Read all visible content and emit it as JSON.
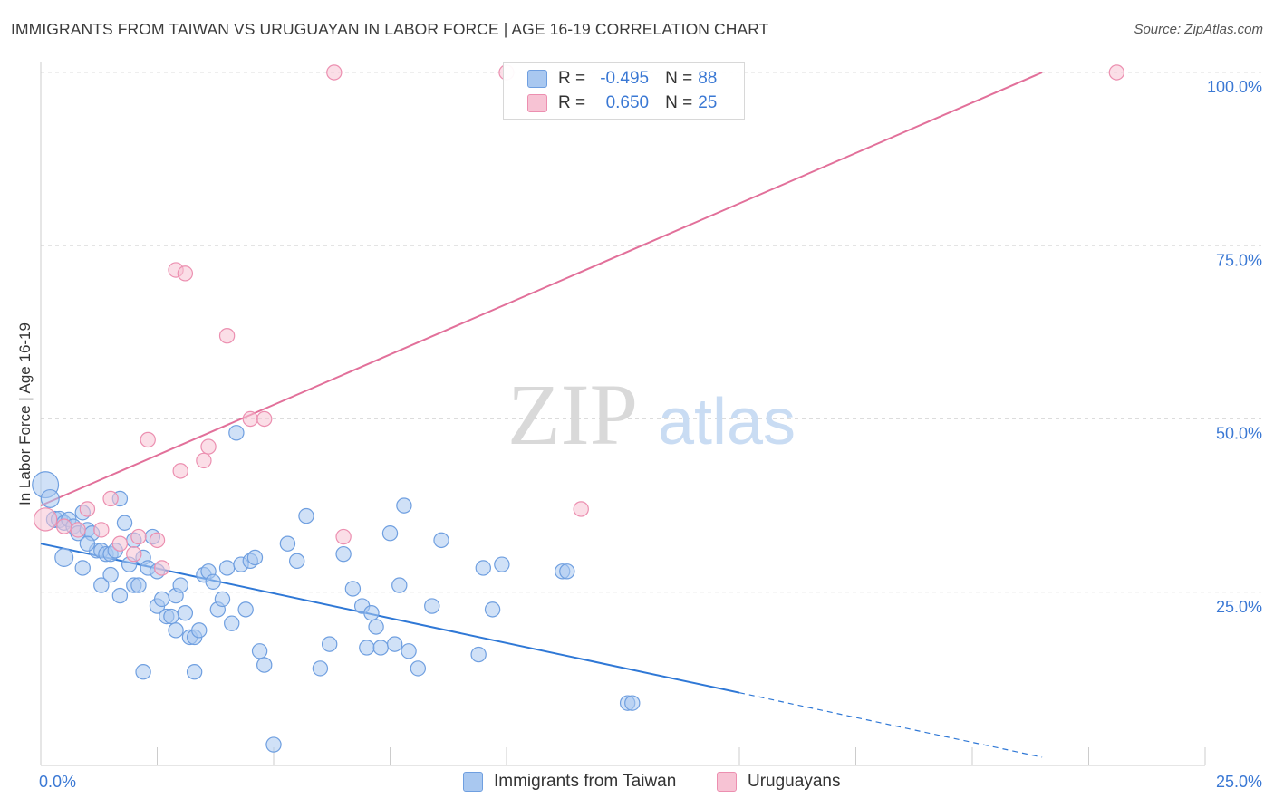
{
  "title": "IMMIGRANTS FROM TAIWAN VS URUGUAYAN IN LABOR FORCE | AGE 16-19 CORRELATION CHART",
  "source": "Source: ZipAtlas.com",
  "watermark": {
    "part1": "ZIP",
    "part2": "atlas"
  },
  "legend": {
    "series1": {
      "r_label": "R =",
      "r_value": "-0.495",
      "n_label": "N =",
      "n_value": "88"
    },
    "series2": {
      "r_label": "R =",
      "r_value": "0.650",
      "n_label": "N =",
      "n_value": "25"
    }
  },
  "colors": {
    "blue_fill": "#a9c8f0",
    "blue_stroke": "#6f9fe0",
    "blue_line": "#2f78d6",
    "pink_fill": "#f7c3d4",
    "pink_stroke": "#ec8fb0",
    "pink_line": "#e2709a",
    "axis_label": "#3a78d4",
    "grid": "#dcdcdc"
  },
  "chart_data": {
    "type": "scatter",
    "title": "IMMIGRANTS FROM TAIWAN VS URUGUAYAN IN LABOR FORCE | AGE 16-19 CORRELATION CHART",
    "xlabel": "",
    "ylabel": "In Labor Force | Age 16-19",
    "xlim": [
      0,
      25
    ],
    "ylim": [
      0,
      100
    ],
    "x_tick_labels": [
      "0.0%",
      "25.0%"
    ],
    "y_ticks": [
      25,
      50,
      75,
      100
    ],
    "y_tick_labels": [
      "25.0%",
      "50.0%",
      "75.0%",
      "100.0%"
    ],
    "series": [
      {
        "name": "Immigrants from Taiwan",
        "color": "blue",
        "r": -0.495,
        "n": 88,
        "trend": {
          "x0": 0,
          "y0": 32,
          "x1": 15,
          "y1": 10.5,
          "dash_to_x": 21.5
        },
        "points": [
          [
            0.1,
            40.5,
            16
          ],
          [
            0.2,
            38.5,
            11
          ],
          [
            0.3,
            35.5,
            10
          ],
          [
            0.4,
            35.5,
            10
          ],
          [
            0.5,
            35,
            9
          ],
          [
            0.6,
            35.5,
            9
          ],
          [
            0.7,
            34.5,
            9
          ],
          [
            0.8,
            33.5,
            9
          ],
          [
            0.9,
            36.5,
            9
          ],
          [
            1.0,
            34,
            9
          ],
          [
            1.1,
            33.5,
            9
          ],
          [
            1.2,
            31,
            9
          ],
          [
            1.3,
            31,
            9
          ],
          [
            1.4,
            30.5,
            9
          ],
          [
            1.5,
            30.5,
            9
          ],
          [
            1.7,
            38.5,
            9
          ],
          [
            1.8,
            35,
            9
          ],
          [
            1.9,
            29,
            9
          ],
          [
            2.0,
            26,
            9
          ],
          [
            2.1,
            26,
            9
          ],
          [
            2.2,
            30,
            9
          ],
          [
            2.3,
            28.5,
            9
          ],
          [
            2.4,
            33,
            9
          ],
          [
            2.5,
            23,
            9
          ],
          [
            2.6,
            24,
            9
          ],
          [
            2.7,
            21.5,
            9
          ],
          [
            2.8,
            21.5,
            9
          ],
          [
            2.9,
            24.5,
            9
          ],
          [
            3.1,
            22,
            9
          ],
          [
            3.2,
            18.5,
            9
          ],
          [
            3.3,
            18.5,
            9
          ],
          [
            3.4,
            19.5,
            9
          ],
          [
            3.5,
            27.5,
            9
          ],
          [
            3.6,
            28,
            9
          ],
          [
            3.7,
            26.5,
            9
          ],
          [
            3.8,
            22.5,
            9
          ],
          [
            3.9,
            24,
            9
          ],
          [
            4.0,
            28.5,
            9
          ],
          [
            4.1,
            20.5,
            9
          ],
          [
            4.2,
            48,
            9
          ],
          [
            4.3,
            29,
            9
          ],
          [
            4.4,
            22.5,
            9
          ],
          [
            4.5,
            29.5,
            9
          ],
          [
            4.7,
            16.5,
            9
          ],
          [
            4.8,
            14.5,
            9
          ],
          [
            5.0,
            3,
            9
          ],
          [
            5.5,
            29.5,
            9
          ],
          [
            5.7,
            36,
            9
          ],
          [
            6.0,
            14,
            9
          ],
          [
            6.2,
            17.5,
            9
          ],
          [
            6.7,
            25.5,
            9
          ],
          [
            6.9,
            23,
            9
          ],
          [
            7.0,
            17,
            9
          ],
          [
            7.1,
            22,
            9
          ],
          [
            7.2,
            20,
            9
          ],
          [
            7.3,
            17,
            9
          ],
          [
            7.5,
            33.5,
            9
          ],
          [
            7.6,
            17.5,
            9
          ],
          [
            7.7,
            26,
            9
          ],
          [
            7.8,
            37.5,
            9
          ],
          [
            7.9,
            16.5,
            9
          ],
          [
            8.1,
            14,
            9
          ],
          [
            8.4,
            23,
            9
          ],
          [
            8.6,
            32.5,
            9
          ],
          [
            9.4,
            16,
            9
          ],
          [
            9.5,
            28.5,
            9
          ],
          [
            9.7,
            22.5,
            9
          ],
          [
            9.9,
            29,
            9
          ],
          [
            2.5,
            28,
            9
          ],
          [
            1.6,
            31,
            9
          ],
          [
            0.9,
            28.5,
            9
          ],
          [
            0.5,
            30,
            11
          ],
          [
            11.2,
            28,
            9
          ],
          [
            11.3,
            28,
            9
          ],
          [
            12.6,
            9,
            9
          ],
          [
            12.7,
            9,
            9
          ],
          [
            2.0,
            32.5,
            9
          ],
          [
            1.3,
            26,
            9
          ],
          [
            1.7,
            24.5,
            9
          ],
          [
            2.9,
            19.5,
            9
          ],
          [
            4.6,
            30,
            9
          ],
          [
            3.3,
            13.5,
            9
          ],
          [
            2.2,
            13.5,
            9
          ],
          [
            5.3,
            32,
            9
          ],
          [
            6.5,
            30.5,
            9
          ],
          [
            1.0,
            32,
            9
          ],
          [
            1.5,
            27.5,
            9
          ],
          [
            3.0,
            26,
            9
          ]
        ]
      },
      {
        "name": "Uruguayans",
        "color": "pink",
        "r": 0.65,
        "n": 25,
        "trend": {
          "x0": 0,
          "y0": 37.5,
          "x1": 21.5,
          "y1": 100
        },
        "points": [
          [
            0.1,
            35.5,
            14
          ],
          [
            0.5,
            34.5,
            9
          ],
          [
            0.8,
            34,
            9
          ],
          [
            1.0,
            37,
            9
          ],
          [
            1.5,
            38.5,
            9
          ],
          [
            1.7,
            32,
            9
          ],
          [
            2.0,
            30.5,
            9
          ],
          [
            2.3,
            47,
            9
          ],
          [
            2.5,
            32.5,
            9
          ],
          [
            2.6,
            28.5,
            9
          ],
          [
            3.0,
            42.5,
            9
          ],
          [
            2.9,
            71.5,
            9
          ],
          [
            3.1,
            71,
            9
          ],
          [
            3.5,
            44,
            9
          ],
          [
            3.6,
            46,
            9
          ],
          [
            4.0,
            62,
            9
          ],
          [
            4.5,
            50,
            9
          ],
          [
            4.8,
            50,
            9
          ],
          [
            6.5,
            33,
            9
          ],
          [
            6.3,
            100,
            9
          ],
          [
            10.0,
            100,
            9
          ],
          [
            11.6,
            37,
            9
          ],
          [
            23.1,
            100,
            9
          ],
          [
            1.3,
            34,
            9
          ],
          [
            2.1,
            33,
            9
          ]
        ]
      }
    ],
    "legend_position": "top-center"
  },
  "bottom_legend": {
    "series1": "Immigrants from Taiwan",
    "series2": "Uruguayans"
  }
}
